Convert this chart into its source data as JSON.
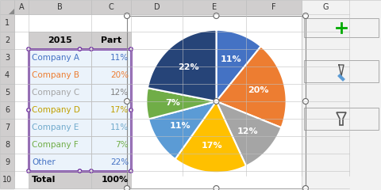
{
  "labels": [
    "Company A",
    "Company B",
    "Company C",
    "Company D",
    "Company E",
    "Company F",
    "Other"
  ],
  "values": [
    11,
    20,
    12,
    17,
    11,
    7,
    22
  ],
  "colors": [
    "#4472C4",
    "#ED7D31",
    "#A5A5A5",
    "#FFC000",
    "#5B9BD5",
    "#70AD47",
    "#264478"
  ],
  "pct_labels": [
    "11%",
    "20%",
    "12%",
    "17%",
    "11%",
    "7%",
    "22%"
  ],
  "label_color": "white",
  "label_fontsize": 8,
  "bg_color": "#FFFFFF",
  "header_bg": "#D0CECE",
  "data_bg": "#EBF3FB",
  "startangle": 90,
  "col_headers": [
    "A",
    "B",
    "C",
    "D",
    "E",
    "F",
    "G"
  ],
  "row_headers": [
    "1",
    "2",
    "3",
    "4",
    "5",
    "6",
    "7",
    "8",
    "9",
    "10"
  ],
  "company_text_colors": [
    "#4472C4",
    "#ED7D31",
    "#A5A5A5",
    "#C0A000",
    "#70AACC",
    "#70AD47",
    "#4472C4"
  ],
  "pct_text_colors": [
    "#4472C4",
    "#ED7D31",
    "#808080",
    "#C0A000",
    "#70AACC",
    "#70AD47",
    "#4472C4"
  ],
  "toolbar_bg": "#F2F2F2",
  "grid_color": "#C0C0C0",
  "excel_outer_bg": "#F0F0F0"
}
